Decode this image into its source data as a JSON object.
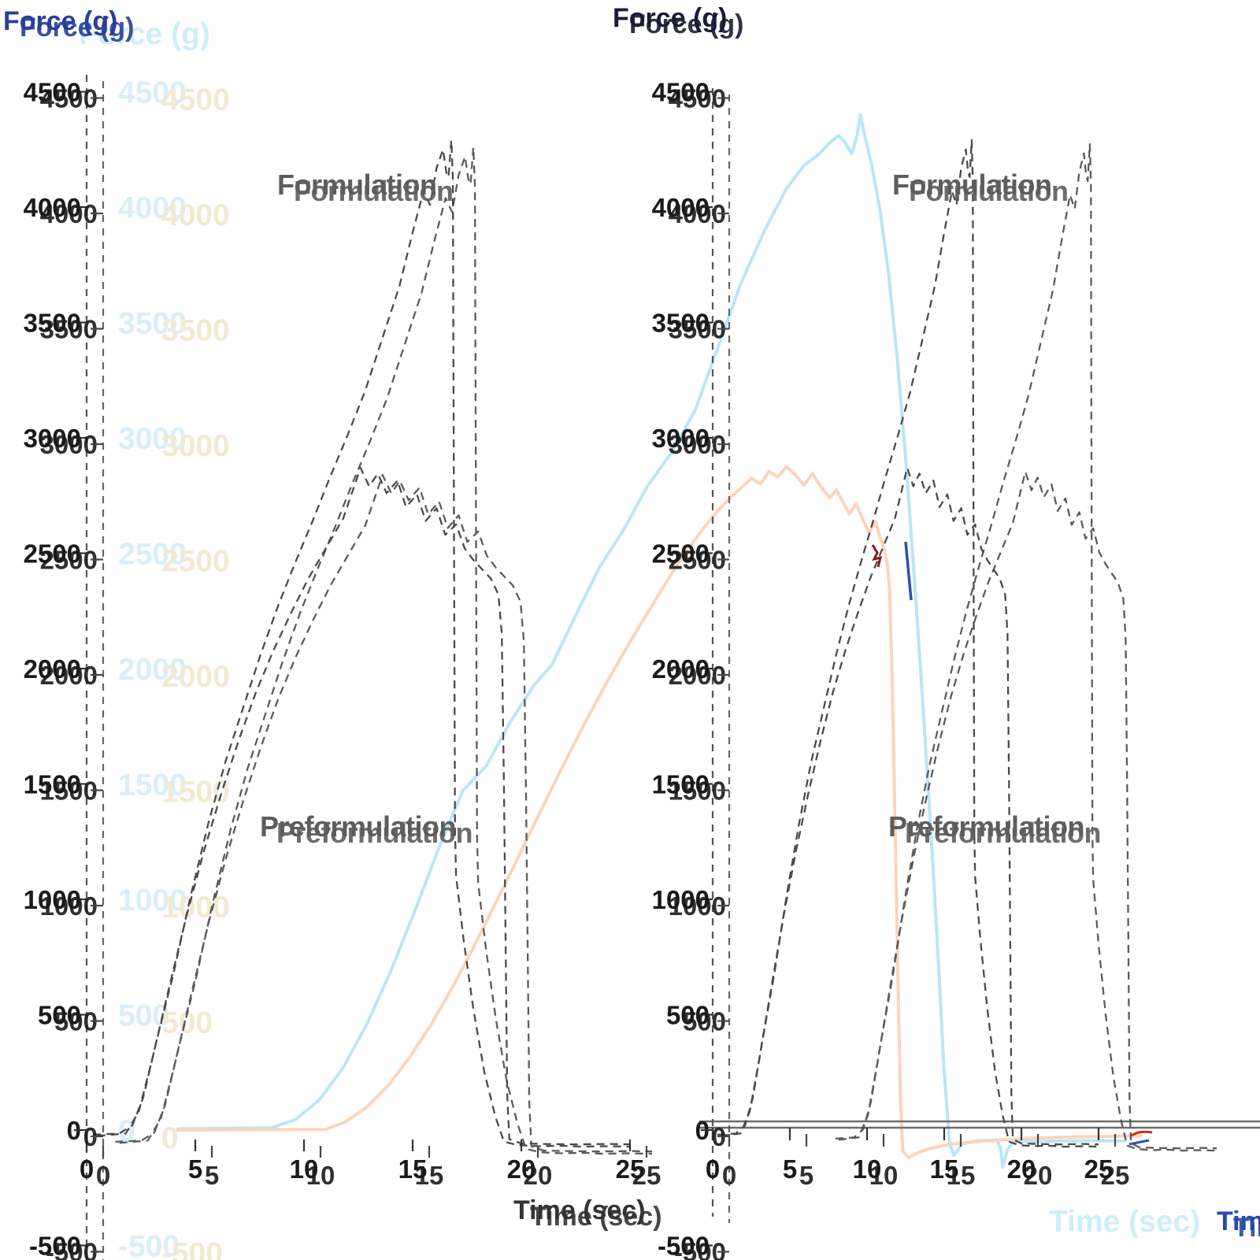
{
  "labels": {
    "force_axis": "Force (g)",
    "time_axis": "Time (sec)"
  },
  "annotations": {
    "formulation": "Formulation",
    "preformulation": "Preformulation"
  },
  "axes": {
    "y_ticks": [
      "4500",
      "4000",
      "3500",
      "3000",
      "2500",
      "2000",
      "1500",
      "1000",
      "500",
      "0",
      "-500"
    ],
    "x_ticks": [
      "0",
      "5",
      "10",
      "15",
      "20",
      "25"
    ]
  },
  "colors": {
    "dashed_curve": "#4a4a4a",
    "overlay_lightblue": "#b5e5f8",
    "overlay_salmon": "#fcd2b6",
    "pale_text_blue": "#cdeefb",
    "pale_text_yellow": "#f1ead2",
    "dark_text": "#1a1a1a",
    "navy_title": "#2a3f96",
    "annotation_gray": "#5d5d5d",
    "axis_gray": "#6b6b6b",
    "tail_red": "#cc2a1f",
    "tail_blue": "#2a52b0",
    "overlap_darkred": "#8b1a1a"
  },
  "chart_data": {
    "type": "line",
    "title": "",
    "xlabel": "Time (sec)",
    "ylabel": "Force (g)",
    "xlim": [
      0,
      25
    ],
    "ylim": [
      -500,
      4500
    ],
    "x_tick_values": [
      0,
      5,
      10,
      15,
      20,
      25
    ],
    "y_tick_values": [
      4500,
      4000,
      3500,
      3000,
      2500,
      2000,
      1500,
      1000,
      500,
      0,
      -500
    ],
    "grid": false,
    "legend_position": "none",
    "panels": [
      {
        "id": "left",
        "annotations": [
          "Formulation",
          "Preformulation"
        ]
      },
      {
        "id": "right",
        "annotations": [
          "Formulation",
          "Preformulation"
        ]
      }
    ],
    "series": [
      {
        "id": "formulation",
        "name": "Formulation",
        "style": "dashed",
        "color": "#4a4a4a",
        "panels": [
          "left",
          "right"
        ],
        "points": [
          [
            0.3,
            -20
          ],
          [
            1.5,
            -15
          ],
          [
            2.1,
            20
          ],
          [
            2.6,
            140
          ],
          [
            3.2,
            380
          ],
          [
            4,
            680
          ],
          [
            4.8,
            1020
          ],
          [
            5.6,
            1330
          ],
          [
            6.4,
            1600
          ],
          [
            7.2,
            1830
          ],
          [
            8,
            2060
          ],
          [
            8.8,
            2270
          ],
          [
            9.6,
            2460
          ],
          [
            10.4,
            2640
          ],
          [
            11.2,
            2830
          ],
          [
            12,
            3010
          ],
          [
            12.8,
            3200
          ],
          [
            13.6,
            3430
          ],
          [
            14.4,
            3660
          ],
          [
            15,
            3890
          ],
          [
            15.5,
            4070
          ],
          [
            15.8,
            4010
          ],
          [
            16.1,
            4170
          ],
          [
            16.4,
            4250
          ],
          [
            16.55,
            4150
          ],
          [
            16.65,
            4130
          ],
          [
            16.78,
            4290
          ],
          [
            16.85,
            4120
          ],
          [
            16.88,
            3200
          ],
          [
            16.92,
            2100
          ],
          [
            16.95,
            1300
          ],
          [
            17,
            1100
          ],
          [
            17.35,
            820
          ],
          [
            17.8,
            520
          ],
          [
            18.3,
            250
          ],
          [
            18.8,
            60
          ],
          [
            19.2,
            -50
          ],
          [
            19.8,
            -65
          ],
          [
            20.8,
            -70
          ],
          [
            21.8,
            -68
          ],
          [
            22.8,
            -72
          ],
          [
            23.8,
            -70
          ],
          [
            25,
            -72
          ]
        ]
      },
      {
        "id": "preformulation",
        "name": "Preformulation",
        "style": "dashed",
        "color": "#4a4a4a",
        "panels": [
          "left",
          "right"
        ],
        "points": [
          [
            0.5,
            -25
          ],
          [
            1.8,
            -15
          ],
          [
            2.4,
            80
          ],
          [
            3,
            300
          ],
          [
            3.8,
            620
          ],
          [
            4.6,
            930
          ],
          [
            5.4,
            1210
          ],
          [
            6.2,
            1460
          ],
          [
            7,
            1690
          ],
          [
            7.8,
            1900
          ],
          [
            8.6,
            2080
          ],
          [
            9.4,
            2240
          ],
          [
            10.2,
            2390
          ],
          [
            11,
            2520
          ],
          [
            11.8,
            2650
          ],
          [
            12.6,
            2870
          ],
          [
            13,
            2790
          ],
          [
            13.4,
            2845
          ],
          [
            13.8,
            2760
          ],
          [
            14.3,
            2815
          ],
          [
            14.7,
            2700
          ],
          [
            15.2,
            2755
          ],
          [
            15.6,
            2640
          ],
          [
            16.1,
            2695
          ],
          [
            16.5,
            2580
          ],
          [
            17,
            2625
          ],
          [
            17.4,
            2520
          ],
          [
            17.8,
            2470
          ],
          [
            18.2,
            2430
          ],
          [
            18.6,
            2390
          ],
          [
            18.95,
            2320
          ],
          [
            19.1,
            2150
          ],
          [
            19.2,
            1500
          ],
          [
            19.28,
            800
          ],
          [
            19.35,
            150
          ],
          [
            19.45,
            -40
          ],
          [
            20,
            -58
          ],
          [
            21,
            -60
          ],
          [
            22.5,
            -62
          ],
          [
            24,
            -60
          ],
          [
            25,
            -62
          ]
        ]
      },
      {
        "id": "overlay_lightblue",
        "name": "overlay light-blue curve",
        "style": "solid",
        "color": "#b5e5f8",
        "panels": [
          "overlay"
        ],
        "points": [
          [
            4.2,
            5
          ],
          [
            8.5,
            10
          ],
          [
            9.6,
            45
          ],
          [
            10.7,
            130
          ],
          [
            11.8,
            270
          ],
          [
            12.9,
            460
          ],
          [
            14,
            690
          ],
          [
            15.1,
            950
          ],
          [
            16.2,
            1220
          ],
          [
            17.3,
            1470
          ],
          [
            18.4,
            1580
          ],
          [
            19.5,
            1770
          ],
          [
            20.6,
            1930
          ],
          [
            21.4,
            2015
          ],
          [
            22.5,
            2230
          ],
          [
            23.6,
            2440
          ],
          [
            24.7,
            2600
          ],
          [
            25.8,
            2790
          ],
          [
            26.9,
            2935
          ],
          [
            28,
            3120
          ],
          [
            29,
            3380
          ],
          [
            30.1,
            3670
          ],
          [
            31.2,
            3900
          ],
          [
            32.2,
            4080
          ],
          [
            33,
            4180
          ],
          [
            33.7,
            4230
          ],
          [
            34.2,
            4280
          ],
          [
            34.6,
            4310
          ],
          [
            34.9,
            4280
          ],
          [
            35.2,
            4230
          ],
          [
            35.45,
            4310
          ],
          [
            35.6,
            4400
          ],
          [
            35.8,
            4310
          ],
          [
            36.1,
            4190
          ],
          [
            36.5,
            3990
          ],
          [
            36.9,
            3710
          ],
          [
            37.3,
            3340
          ],
          [
            37.7,
            2890
          ],
          [
            38.1,
            2370
          ],
          [
            38.5,
            1810
          ],
          [
            38.9,
            1210
          ],
          [
            39.2,
            710
          ],
          [
            39.45,
            260
          ],
          [
            39.7,
            -55
          ],
          [
            39.9,
            -110
          ],
          [
            40.3,
            -60
          ],
          [
            41,
            -45
          ],
          [
            41.9,
            -45
          ],
          [
            42.05,
            -80
          ],
          [
            42.15,
            -160
          ],
          [
            42.35,
            -90
          ],
          [
            42.6,
            -50
          ],
          [
            44,
            -48
          ],
          [
            46,
            -46
          ],
          [
            47.8,
            -47
          ]
        ]
      },
      {
        "id": "overlay_salmon",
        "name": "overlay salmon curve",
        "style": "solid",
        "color": "#fcd2b6",
        "panels": [
          "overlay"
        ],
        "points": [
          [
            4.2,
            0
          ],
          [
            11,
            3
          ],
          [
            11.9,
            35
          ],
          [
            12.9,
            100
          ],
          [
            13.9,
            195
          ],
          [
            14.9,
            320
          ],
          [
            15.9,
            465
          ],
          [
            16.9,
            630
          ],
          [
            17.9,
            810
          ],
          [
            18.9,
            1000
          ],
          [
            19.9,
            1190
          ],
          [
            20.9,
            1385
          ],
          [
            21.9,
            1575
          ],
          [
            22.9,
            1760
          ],
          [
            23.9,
            1935
          ],
          [
            24.9,
            2100
          ],
          [
            25.9,
            2255
          ],
          [
            26.8,
            2395
          ],
          [
            27.6,
            2510
          ],
          [
            28.4,
            2610
          ],
          [
            29.1,
            2690
          ],
          [
            29.7,
            2750
          ],
          [
            30.2,
            2790
          ],
          [
            30.6,
            2825
          ],
          [
            31,
            2800
          ],
          [
            31.4,
            2855
          ],
          [
            31.8,
            2830
          ],
          [
            32.2,
            2875
          ],
          [
            32.6,
            2840
          ],
          [
            33,
            2795
          ],
          [
            33.4,
            2845
          ],
          [
            33.8,
            2785
          ],
          [
            34.2,
            2740
          ],
          [
            34.5,
            2775
          ],
          [
            34.8,
            2720
          ],
          [
            35.1,
            2670
          ],
          [
            35.4,
            2715
          ],
          [
            35.7,
            2650
          ],
          [
            36,
            2590
          ],
          [
            36.3,
            2635
          ],
          [
            36.5,
            2570
          ],
          [
            36.7,
            2515
          ],
          [
            36.85,
            2450
          ],
          [
            36.95,
            2330
          ],
          [
            37.05,
            2000
          ],
          [
            37.15,
            1550
          ],
          [
            37.25,
            1050
          ],
          [
            37.35,
            550
          ],
          [
            37.45,
            120
          ],
          [
            37.55,
            -90
          ],
          [
            37.8,
            -120
          ],
          [
            38.2,
            -100
          ],
          [
            38.8,
            -80
          ],
          [
            39.8,
            -60
          ],
          [
            41.5,
            -45
          ],
          [
            43.5,
            -35
          ],
          [
            45.5,
            -30
          ],
          [
            47.5,
            -27
          ],
          [
            48.5,
            -25
          ]
        ]
      }
    ]
  }
}
